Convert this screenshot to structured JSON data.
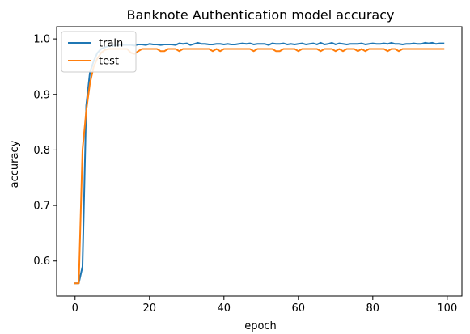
{
  "chart_data": {
    "type": "line",
    "title": "Banknote Authentication model accuracy",
    "xlabel": "epoch",
    "ylabel": "accuracy",
    "xlim": [
      -4.95,
      103.95
    ],
    "ylim": [
      0.537,
      1.022
    ],
    "xticks": [
      0,
      20,
      40,
      60,
      80,
      100
    ],
    "yticks": [
      0.6,
      0.7,
      0.8,
      0.9,
      1.0
    ],
    "xtick_labels": [
      "0",
      "20",
      "40",
      "60",
      "80",
      "100"
    ],
    "ytick_labels": [
      "0.6",
      "0.7",
      "0.8",
      "0.9",
      "1.0"
    ],
    "legend_position": "top-left",
    "grid": false,
    "series": [
      {
        "name": "train",
        "color": "#1f77b4",
        "x": [
          0,
          1,
          2,
          3,
          4,
          5,
          6,
          7,
          8,
          9,
          10,
          11,
          12,
          13,
          14,
          15,
          16,
          17,
          18,
          19,
          20,
          21,
          22,
          23,
          24,
          25,
          26,
          27,
          28,
          29,
          30,
          31,
          32,
          33,
          34,
          35,
          36,
          37,
          38,
          39,
          40,
          41,
          42,
          43,
          44,
          45,
          46,
          47,
          48,
          49,
          50,
          51,
          52,
          53,
          54,
          55,
          56,
          57,
          58,
          59,
          60,
          61,
          62,
          63,
          64,
          65,
          66,
          67,
          68,
          69,
          70,
          71,
          72,
          73,
          74,
          75,
          76,
          77,
          78,
          79,
          80,
          81,
          82,
          83,
          84,
          85,
          86,
          87,
          88,
          89,
          90,
          91,
          92,
          93,
          94,
          95,
          96,
          97,
          98,
          99
        ],
        "values": [
          0.56,
          0.56,
          0.59,
          0.88,
          0.94,
          0.96,
          0.975,
          0.982,
          0.985,
          0.987,
          0.988,
          0.988,
          0.989,
          0.989,
          0.989,
          0.989,
          0.988,
          0.99,
          0.99,
          0.989,
          0.991,
          0.99,
          0.99,
          0.989,
          0.99,
          0.99,
          0.99,
          0.989,
          0.992,
          0.991,
          0.992,
          0.989,
          0.991,
          0.993,
          0.991,
          0.991,
          0.99,
          0.99,
          0.991,
          0.991,
          0.99,
          0.991,
          0.99,
          0.99,
          0.991,
          0.992,
          0.991,
          0.992,
          0.99,
          0.991,
          0.991,
          0.991,
          0.989,
          0.992,
          0.991,
          0.991,
          0.992,
          0.99,
          0.991,
          0.99,
          0.991,
          0.992,
          0.99,
          0.991,
          0.992,
          0.99,
          0.993,
          0.99,
          0.991,
          0.993,
          0.99,
          0.992,
          0.991,
          0.99,
          0.991,
          0.991,
          0.991,
          0.992,
          0.99,
          0.991,
          0.992,
          0.991,
          0.991,
          0.992,
          0.991,
          0.993,
          0.991,
          0.991,
          0.99,
          0.991,
          0.991,
          0.992,
          0.991,
          0.991,
          0.993,
          0.992,
          0.993,
          0.991,
          0.992,
          0.992
        ]
      },
      {
        "name": "test",
        "color": "#ff7f0e",
        "x": [
          0,
          1,
          2,
          3,
          4,
          5,
          6,
          7,
          8,
          9,
          10,
          11,
          12,
          13,
          14,
          15,
          16,
          17,
          18,
          19,
          20,
          21,
          22,
          23,
          24,
          25,
          26,
          27,
          28,
          29,
          30,
          31,
          32,
          33,
          34,
          35,
          36,
          37,
          38,
          39,
          40,
          41,
          42,
          43,
          44,
          45,
          46,
          47,
          48,
          49,
          50,
          51,
          52,
          53,
          54,
          55,
          56,
          57,
          58,
          59,
          60,
          61,
          62,
          63,
          64,
          65,
          66,
          67,
          68,
          69,
          70,
          71,
          72,
          73,
          74,
          75,
          76,
          77,
          78,
          79,
          80,
          81,
          82,
          83,
          84,
          85,
          86,
          87,
          88,
          89,
          90,
          91,
          92,
          93,
          94,
          95,
          96,
          97,
          98,
          99
        ],
        "values": [
          0.56,
          0.56,
          0.8,
          0.87,
          0.92,
          0.95,
          0.965,
          0.975,
          0.98,
          0.982,
          0.982,
          0.982,
          0.982,
          0.982,
          0.982,
          0.975,
          0.973,
          0.978,
          0.982,
          0.982,
          0.982,
          0.982,
          0.982,
          0.978,
          0.978,
          0.982,
          0.982,
          0.982,
          0.978,
          0.982,
          0.982,
          0.982,
          0.982,
          0.982,
          0.982,
          0.982,
          0.982,
          0.978,
          0.982,
          0.978,
          0.982,
          0.982,
          0.982,
          0.982,
          0.982,
          0.982,
          0.982,
          0.982,
          0.978,
          0.982,
          0.982,
          0.982,
          0.982,
          0.982,
          0.978,
          0.978,
          0.982,
          0.982,
          0.982,
          0.982,
          0.978,
          0.982,
          0.982,
          0.982,
          0.982,
          0.982,
          0.978,
          0.982,
          0.982,
          0.982,
          0.978,
          0.982,
          0.978,
          0.982,
          0.982,
          0.982,
          0.978,
          0.982,
          0.978,
          0.982,
          0.982,
          0.982,
          0.982,
          0.982,
          0.978,
          0.982,
          0.982,
          0.978,
          0.982,
          0.982,
          0.982,
          0.982,
          0.982,
          0.982,
          0.982,
          0.982,
          0.982,
          0.982,
          0.982,
          0.982
        ]
      }
    ]
  }
}
